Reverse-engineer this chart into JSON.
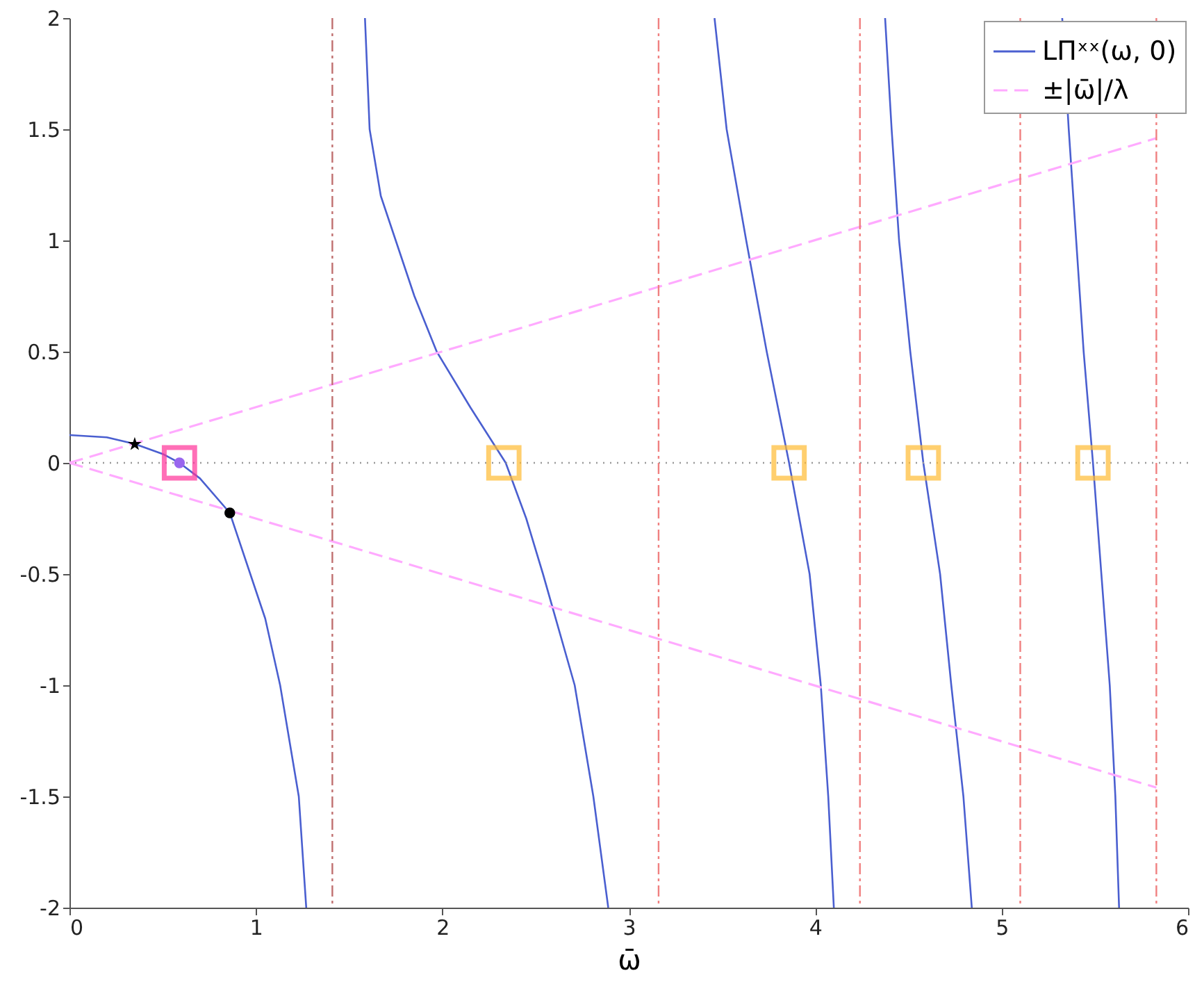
{
  "chart_data": {
    "type": "line",
    "xlabel": "ω̄",
    "xlim": [
      0,
      6
    ],
    "xticks": [
      0,
      1,
      2,
      3,
      4,
      5,
      6
    ],
    "ylim": [
      -2,
      2
    ],
    "yticks": [
      -2,
      -1.5,
      -1,
      -0.5,
      0,
      0.5,
      1,
      1.5,
      2
    ],
    "grid": false,
    "legend": "top right",
    "series": [
      {
        "name": "LΠˣˣ(ω, 0)",
        "color": "#4a5fd0",
        "line_style": "solid",
        "x": [
          0,
          0.2,
          0.35,
          0.5,
          0.59,
          0.7,
          0.86,
          0.97,
          1.05,
          1.13,
          1.2,
          1.23,
          1.27
        ],
        "values": [
          0.125,
          0.115,
          0.085,
          0.04,
          0,
          -0.07,
          -0.225,
          -0.5,
          -0.7,
          -1,
          -1.35,
          -1.5,
          -2
        ]
      },
      {
        "color": "#4a5fd0",
        "line_style": "solid",
        "x": [
          1.585,
          1.6,
          1.61,
          1.67,
          1.75,
          1.85,
          1.97,
          2.15,
          2.34,
          2.45,
          2.54,
          2.71,
          2.81,
          2.89
        ],
        "values": [
          2,
          1.7,
          1.5,
          1.2,
          1,
          0.75,
          0.5,
          0.25,
          0,
          -0.25,
          -0.5,
          -1,
          -1.5,
          -2
        ]
      },
      {
        "color": "#4a5fd0",
        "line_style": "solid",
        "x": [
          3.46,
          3.525,
          3.63,
          3.74,
          3.86,
          3.97,
          4.03,
          4.07,
          4.1
        ],
        "values": [
          2,
          1.5,
          1,
          0.5,
          0,
          -0.5,
          -1,
          -1.5,
          -2
        ]
      },
      {
        "color": "#4a5fd0",
        "line_style": "solid",
        "x": [
          4.375,
          4.41,
          4.45,
          4.51,
          4.58,
          4.67,
          4.73,
          4.795,
          4.84
        ],
        "values": [
          2,
          1.5,
          1,
          0.5,
          0,
          -0.5,
          -1,
          -1.5,
          -2
        ]
      },
      {
        "color": "#4a5fd0",
        "line_style": "solid",
        "x": [
          5.325,
          5.36,
          5.4,
          5.44,
          5.49,
          5.535,
          5.58,
          5.61,
          5.63
        ],
        "values": [
          2,
          1.5,
          1,
          0.5,
          0,
          -0.5,
          -1,
          -1.5,
          -2
        ]
      },
      {
        "name": "±|ω̄|/λ",
        "color": "#ffaaff",
        "line_style": "dashed",
        "x": [
          0,
          5.83
        ],
        "values": [
          0,
          1.46
        ]
      },
      {
        "color": "#ffaaff",
        "line_style": "dashed",
        "x": [
          0,
          5.83
        ],
        "values": [
          0,
          -1.46
        ]
      },
      {
        "color": "#000000",
        "type": "scatter",
        "marker": "star",
        "x": [
          0.35
        ],
        "values": [
          0.084
        ]
      },
      {
        "color": "#000000",
        "type": "scatter",
        "marker": "circle",
        "x": [
          0.86
        ],
        "values": [
          -0.225
        ]
      },
      {
        "color": "#9966ee",
        "type": "scatter",
        "marker": "circle",
        "x": [
          0.59
        ],
        "values": [
          0
        ]
      },
      {
        "color": "#ff3399",
        "type": "scatter",
        "marker": "square",
        "x": [
          0.59
        ],
        "values": [
          0
        ]
      },
      {
        "color": "#ffbb33",
        "type": "scatter",
        "marker": "square",
        "x": [
          2.33,
          3.86,
          4.58,
          5.49
        ],
        "values": [
          0,
          0,
          0,
          0
        ]
      }
    ],
    "ref_lines": [
      {
        "axis": "y",
        "value": 0,
        "color": "#999999",
        "line_style": "dotted"
      },
      {
        "axis": "x",
        "value": 1.41,
        "color": "#c07070",
        "line_style": "dashed"
      },
      {
        "axis": "x",
        "value": 3.16,
        "color": "#f08080",
        "line_style": "dashed"
      },
      {
        "axis": "x",
        "value": 4.24,
        "color": "#f08080",
        "line_style": "dashed"
      },
      {
        "axis": "x",
        "value": 5.1,
        "color": "#f08080",
        "line_style": "dashed"
      },
      {
        "axis": "x",
        "value": 5.83,
        "color": "#f08080",
        "line_style": "dashed"
      }
    ]
  }
}
